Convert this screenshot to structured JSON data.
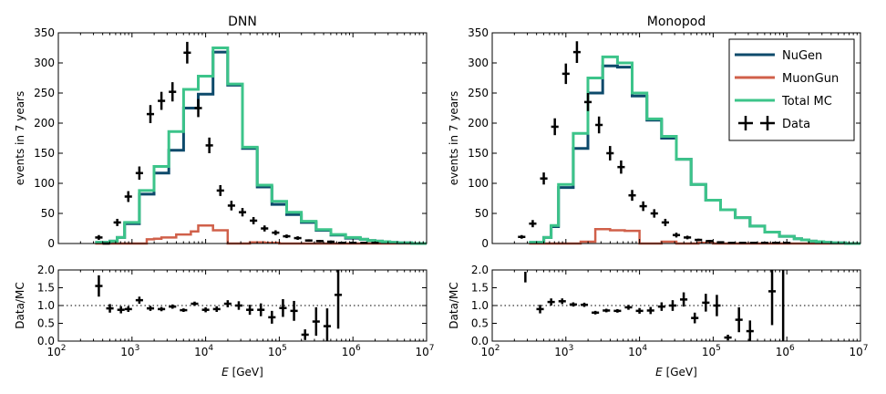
{
  "colors": {
    "nugen": "#0d4a6b",
    "muongun": "#d0604a",
    "total_mc": "#3cc48a",
    "data": "#000000",
    "ratio_ref": "#000000"
  },
  "shared": {
    "xlabel_italic": "E",
    "xlabel_rest": "[GeV]",
    "ylabel_main": "events in 7 years",
    "ylabel_ratio": "Data/MC",
    "xscale": "log",
    "xlim": [
      100,
      10000000
    ],
    "main_ylim": [
      0,
      350
    ],
    "ratio_ylim": [
      0.0,
      2.0
    ],
    "main_yticks": [
      "0",
      "50",
      "100",
      "150",
      "200",
      "250",
      "300",
      "350"
    ],
    "ratio_yticks": [
      "0.0",
      "0.5",
      "1.0",
      "1.5",
      "2.0"
    ],
    "x_ticks": [
      {
        "base": "10",
        "exp": "2"
      },
      {
        "base": "10",
        "exp": "3"
      },
      {
        "base": "10",
        "exp": "4"
      },
      {
        "base": "10",
        "exp": "5"
      },
      {
        "base": "10",
        "exp": "6"
      },
      {
        "base": "10",
        "exp": "7"
      }
    ]
  },
  "legend": {
    "placement": "top-right of Monopod panel",
    "entries": [
      {
        "key": "nugen",
        "label": "NuGen"
      },
      {
        "key": "muongun",
        "label": "MuonGun"
      },
      {
        "key": "total_mc",
        "label": "Total MC"
      },
      {
        "key": "data",
        "label": "Data"
      }
    ]
  },
  "chart_data": [
    {
      "type": "line",
      "panel": "DNN",
      "title": "DNN",
      "bin_edges_log10": [
        2.5,
        2.6,
        2.7,
        2.8,
        2.9,
        3.0,
        3.1,
        3.2,
        3.3,
        3.4,
        3.5,
        3.6,
        3.7,
        3.8,
        3.9,
        4.0,
        4.1,
        4.2,
        4.3,
        4.4,
        4.5,
        4.6,
        4.7,
        4.8,
        4.9,
        5.0,
        5.1,
        5.2,
        5.3,
        5.4,
        5.5,
        5.6,
        5.7,
        5.8,
        5.9,
        6.0,
        6.1,
        6.2,
        6.3,
        6.4,
        6.5,
        6.6,
        6.7,
        6.8,
        6.9,
        7.0
      ],
      "series": [
        {
          "name": "NuGen",
          "key": "nugen",
          "values": [
            2,
            2,
            4,
            10,
            33,
            33,
            82,
            82,
            117,
            117,
            155,
            155,
            225,
            225,
            248,
            248,
            318,
            318,
            263,
            263,
            158,
            158,
            94,
            94,
            65,
            65,
            48,
            48,
            35,
            35,
            22,
            22,
            14,
            14,
            9,
            9,
            7,
            5,
            4,
            3,
            2,
            1,
            1,
            0,
            0
          ]
        },
        {
          "name": "MuonGun",
          "key": "muongun",
          "values": [
            0,
            0,
            0,
            0,
            0,
            0,
            0,
            7,
            8,
            10,
            10,
            15,
            15,
            20,
            30,
            30,
            22,
            22,
            0,
            0,
            0,
            2,
            2,
            1,
            1,
            0,
            0,
            0,
            0,
            0,
            0,
            0,
            0,
            0,
            0,
            0,
            0,
            0,
            0,
            0,
            0,
            0,
            0,
            0,
            0
          ]
        },
        {
          "name": "Total MC",
          "key": "total_mc",
          "values": [
            2,
            2,
            4,
            10,
            35,
            35,
            88,
            88,
            128,
            128,
            186,
            186,
            256,
            256,
            278,
            278,
            325,
            325,
            265,
            265,
            160,
            160,
            97,
            97,
            70,
            70,
            52,
            52,
            37,
            37,
            23,
            23,
            15,
            15,
            10,
            10,
            7,
            5,
            4,
            3,
            2,
            1,
            1,
            0,
            0
          ]
        }
      ],
      "data_points": [
        {
          "x": 2.55,
          "y": 10,
          "xerr": 0.05,
          "yerr": 4
        },
        {
          "x": 2.65,
          "y": 0,
          "xerr": 0.05,
          "yerr": 0
        },
        {
          "x": 2.8,
          "y": 35,
          "xerr": 0.05,
          "yerr": 6
        },
        {
          "x": 2.95,
          "y": 78,
          "xerr": 0.05,
          "yerr": 9
        },
        {
          "x": 3.1,
          "y": 117,
          "xerr": 0.05,
          "yerr": 11
        },
        {
          "x": 3.25,
          "y": 215,
          "xerr": 0.05,
          "yerr": 15
        },
        {
          "x": 3.4,
          "y": 237,
          "xerr": 0.05,
          "yerr": 15
        },
        {
          "x": 3.55,
          "y": 252,
          "xerr": 0.05,
          "yerr": 16
        },
        {
          "x": 3.75,
          "y": 317,
          "xerr": 0.05,
          "yerr": 18
        },
        {
          "x": 3.9,
          "y": 225,
          "xerr": 0.05,
          "yerr": 15
        },
        {
          "x": 4.05,
          "y": 163,
          "xerr": 0.05,
          "yerr": 13
        },
        {
          "x": 4.2,
          "y": 88,
          "xerr": 0.05,
          "yerr": 9
        },
        {
          "x": 4.35,
          "y": 63,
          "xerr": 0.05,
          "yerr": 8
        },
        {
          "x": 4.5,
          "y": 52,
          "xerr": 0.05,
          "yerr": 7
        },
        {
          "x": 4.65,
          "y": 38,
          "xerr": 0.05,
          "yerr": 6
        },
        {
          "x": 4.8,
          "y": 25,
          "xerr": 0.05,
          "yerr": 5
        },
        {
          "x": 4.95,
          "y": 18,
          "xerr": 0.05,
          "yerr": 4
        },
        {
          "x": 5.1,
          "y": 12,
          "xerr": 0.05,
          "yerr": 3
        },
        {
          "x": 5.25,
          "y": 9,
          "xerr": 0.05,
          "yerr": 3
        },
        {
          "x": 5.4,
          "y": 5,
          "xerr": 0.05,
          "yerr": 2
        },
        {
          "x": 5.55,
          "y": 4,
          "xerr": 0.05,
          "yerr": 2
        },
        {
          "x": 5.7,
          "y": 3,
          "xerr": 0.05,
          "yerr": 2
        },
        {
          "x": 5.85,
          "y": 1,
          "xerr": 0.05,
          "yerr": 1
        },
        {
          "x": 6.0,
          "y": 1,
          "xerr": 0.05,
          "yerr": 1
        },
        {
          "x": 6.15,
          "y": 1,
          "xerr": 0.05,
          "yerr": 1
        },
        {
          "x": 6.3,
          "y": 1,
          "xerr": 0.05,
          "yerr": 1
        }
      ],
      "ratio_points": [
        {
          "x": 2.55,
          "y": 1.55,
          "xerr": 0.05,
          "yerr": 0.3
        },
        {
          "x": 2.7,
          "y": 0.92,
          "xerr": 0.05,
          "yerr": 0.12
        },
        {
          "x": 2.85,
          "y": 0.88,
          "xerr": 0.05,
          "yerr": 0.1
        },
        {
          "x": 2.95,
          "y": 0.9,
          "xerr": 0.05,
          "yerr": 0.08
        },
        {
          "x": 3.1,
          "y": 1.15,
          "xerr": 0.05,
          "yerr": 0.1
        },
        {
          "x": 3.25,
          "y": 0.92,
          "xerr": 0.05,
          "yerr": 0.07
        },
        {
          "x": 3.4,
          "y": 0.9,
          "xerr": 0.05,
          "yerr": 0.06
        },
        {
          "x": 3.55,
          "y": 0.97,
          "xerr": 0.05,
          "yerr": 0.06
        },
        {
          "x": 3.7,
          "y": 0.87,
          "xerr": 0.05,
          "yerr": 0.05
        },
        {
          "x": 3.85,
          "y": 1.05,
          "xerr": 0.05,
          "yerr": 0.06
        },
        {
          "x": 4.0,
          "y": 0.88,
          "xerr": 0.05,
          "yerr": 0.07
        },
        {
          "x": 4.15,
          "y": 0.9,
          "xerr": 0.05,
          "yerr": 0.08
        },
        {
          "x": 4.3,
          "y": 1.05,
          "xerr": 0.05,
          "yerr": 0.1
        },
        {
          "x": 4.45,
          "y": 1.0,
          "xerr": 0.05,
          "yerr": 0.12
        },
        {
          "x": 4.6,
          "y": 0.88,
          "xerr": 0.05,
          "yerr": 0.14
        },
        {
          "x": 4.75,
          "y": 0.88,
          "xerr": 0.05,
          "yerr": 0.18
        },
        {
          "x": 4.9,
          "y": 0.67,
          "xerr": 0.05,
          "yerr": 0.18
        },
        {
          "x": 5.05,
          "y": 0.93,
          "xerr": 0.05,
          "yerr": 0.25
        },
        {
          "x": 5.2,
          "y": 0.85,
          "xerr": 0.05,
          "yerr": 0.28
        },
        {
          "x": 5.35,
          "y": 0.18,
          "xerr": 0.05,
          "yerr": 0.15
        },
        {
          "x": 5.5,
          "y": 0.55,
          "xerr": 0.05,
          "yerr": 0.4
        },
        {
          "x": 5.65,
          "y": 0.42,
          "xerr": 0.05,
          "yerr": 0.5
        },
        {
          "x": 5.8,
          "y": 1.3,
          "xerr": 0.05,
          "yerr": 0.95
        }
      ]
    },
    {
      "type": "line",
      "panel": "Monopod",
      "title": "Monopod",
      "bin_edges_log10": [
        2.5,
        2.6,
        2.7,
        2.8,
        2.9,
        3.0,
        3.1,
        3.2,
        3.3,
        3.4,
        3.5,
        3.6,
        3.7,
        3.8,
        3.9,
        4.0,
        4.1,
        4.2,
        4.3,
        4.4,
        4.5,
        4.6,
        4.7,
        4.8,
        4.9,
        5.0,
        5.1,
        5.2,
        5.3,
        5.4,
        5.5,
        5.6,
        5.7,
        5.8,
        5.9,
        6.0,
        6.1,
        6.2,
        6.3,
        6.4,
        6.5,
        6.6,
        6.7,
        6.8,
        6.9,
        7.0
      ],
      "series": [
        {
          "name": "NuGen",
          "key": "nugen",
          "values": [
            2,
            2,
            10,
            28,
            93,
            93,
            158,
            158,
            250,
            250,
            295,
            295,
            293,
            293,
            245,
            245,
            205,
            205,
            175,
            175,
            140,
            140,
            98,
            98,
            72,
            72,
            56,
            56,
            43,
            43,
            29,
            29,
            19,
            19,
            12,
            12,
            8,
            6,
            4,
            3,
            2,
            1,
            1,
            0,
            0
          ]
        },
        {
          "name": "MuonGun",
          "key": "muongun",
          "values": [
            0,
            0,
            0,
            0,
            0,
            0,
            0,
            3,
            3,
            24,
            24,
            22,
            22,
            21,
            21,
            0,
            0,
            0,
            3,
            3,
            0,
            0,
            0,
            1,
            1,
            0,
            0,
            0,
            0,
            0,
            0,
            0,
            0,
            0,
            0,
            0,
            0,
            0,
            0,
            0,
            0,
            0,
            0,
            0,
            0
          ]
        },
        {
          "name": "Total MC",
          "key": "total_mc",
          "values": [
            2,
            2,
            10,
            30,
            98,
            98,
            183,
            183,
            275,
            275,
            310,
            310,
            300,
            300,
            250,
            250,
            207,
            207,
            178,
            178,
            140,
            140,
            98,
            98,
            72,
            72,
            56,
            56,
            43,
            43,
            29,
            29,
            19,
            19,
            12,
            12,
            8,
            6,
            4,
            3,
            2,
            1,
            1,
            0,
            0
          ]
        }
      ],
      "data_points": [
        {
          "x": 2.4,
          "y": 11,
          "xerr": 0.05,
          "yerr": 3
        },
        {
          "x": 2.55,
          "y": 33,
          "xerr": 0.05,
          "yerr": 6
        },
        {
          "x": 2.7,
          "y": 108,
          "xerr": 0.05,
          "yerr": 10
        },
        {
          "x": 2.85,
          "y": 194,
          "xerr": 0.05,
          "yerr": 14
        },
        {
          "x": 3.0,
          "y": 282,
          "xerr": 0.05,
          "yerr": 17
        },
        {
          "x": 3.15,
          "y": 318,
          "xerr": 0.05,
          "yerr": 18
        },
        {
          "x": 3.3,
          "y": 235,
          "xerr": 0.05,
          "yerr": 15
        },
        {
          "x": 3.45,
          "y": 197,
          "xerr": 0.05,
          "yerr": 14
        },
        {
          "x": 3.6,
          "y": 150,
          "xerr": 0.05,
          "yerr": 12
        },
        {
          "x": 3.75,
          "y": 127,
          "xerr": 0.05,
          "yerr": 11
        },
        {
          "x": 3.9,
          "y": 80,
          "xerr": 0.05,
          "yerr": 9
        },
        {
          "x": 4.05,
          "y": 62,
          "xerr": 0.05,
          "yerr": 8
        },
        {
          "x": 4.2,
          "y": 50,
          "xerr": 0.05,
          "yerr": 7
        },
        {
          "x": 4.35,
          "y": 35,
          "xerr": 0.05,
          "yerr": 6
        },
        {
          "x": 4.5,
          "y": 14,
          "xerr": 0.05,
          "yerr": 4
        },
        {
          "x": 4.65,
          "y": 10,
          "xerr": 0.05,
          "yerr": 3
        },
        {
          "x": 4.8,
          "y": 6,
          "xerr": 0.05,
          "yerr": 2
        },
        {
          "x": 4.95,
          "y": 4,
          "xerr": 0.05,
          "yerr": 2
        },
        {
          "x": 5.1,
          "y": 2,
          "xerr": 0.05,
          "yerr": 1
        },
        {
          "x": 5.25,
          "y": 1,
          "xerr": 0.05,
          "yerr": 1
        },
        {
          "x": 5.4,
          "y": 1,
          "xerr": 0.05,
          "yerr": 1
        },
        {
          "x": 5.55,
          "y": 1,
          "xerr": 0.05,
          "yerr": 1
        },
        {
          "x": 5.7,
          "y": 1,
          "xerr": 0.05,
          "yerr": 1
        },
        {
          "x": 5.85,
          "y": 1,
          "xerr": 0.05,
          "yerr": 1
        },
        {
          "x": 6.0,
          "y": 1,
          "xerr": 0.05,
          "yerr": 1
        }
      ],
      "ratio_points": [
        {
          "x": 2.45,
          "y": 1.8,
          "xerr": 0.0,
          "yerr": 0.15
        },
        {
          "x": 2.65,
          "y": 0.9,
          "xerr": 0.05,
          "yerr": 0.12
        },
        {
          "x": 2.8,
          "y": 1.1,
          "xerr": 0.05,
          "yerr": 0.1
        },
        {
          "x": 2.95,
          "y": 1.12,
          "xerr": 0.05,
          "yerr": 0.08
        },
        {
          "x": 3.1,
          "y": 1.03,
          "xerr": 0.05,
          "yerr": 0.06
        },
        {
          "x": 3.25,
          "y": 1.02,
          "xerr": 0.05,
          "yerr": 0.06
        },
        {
          "x": 3.4,
          "y": 0.8,
          "xerr": 0.05,
          "yerr": 0.05
        },
        {
          "x": 3.55,
          "y": 0.86,
          "xerr": 0.05,
          "yerr": 0.05
        },
        {
          "x": 3.7,
          "y": 0.85,
          "xerr": 0.05,
          "yerr": 0.05
        },
        {
          "x": 3.85,
          "y": 0.95,
          "xerr": 0.05,
          "yerr": 0.07
        },
        {
          "x": 4.0,
          "y": 0.85,
          "xerr": 0.05,
          "yerr": 0.08
        },
        {
          "x": 4.15,
          "y": 0.86,
          "xerr": 0.05,
          "yerr": 0.1
        },
        {
          "x": 4.3,
          "y": 0.97,
          "xerr": 0.05,
          "yerr": 0.12
        },
        {
          "x": 4.45,
          "y": 1.0,
          "xerr": 0.05,
          "yerr": 0.15
        },
        {
          "x": 4.6,
          "y": 1.17,
          "xerr": 0.05,
          "yerr": 0.2
        },
        {
          "x": 4.75,
          "y": 0.65,
          "xerr": 0.05,
          "yerr": 0.15
        },
        {
          "x": 4.9,
          "y": 1.08,
          "xerr": 0.05,
          "yerr": 0.25
        },
        {
          "x": 5.05,
          "y": 1.0,
          "xerr": 0.05,
          "yerr": 0.3
        },
        {
          "x": 5.2,
          "y": 0.1,
          "xerr": 0.05,
          "yerr": 0.08
        },
        {
          "x": 5.35,
          "y": 0.6,
          "xerr": 0.05,
          "yerr": 0.35
        },
        {
          "x": 5.5,
          "y": 0.28,
          "xerr": 0.05,
          "yerr": 0.3
        },
        {
          "x": 5.8,
          "y": 1.4,
          "xerr": 0.05,
          "yerr": 0.95
        },
        {
          "x": 5.95,
          "y": 1.0,
          "xerr": 0.0,
          "yerr": 1.0
        }
      ]
    }
  ]
}
